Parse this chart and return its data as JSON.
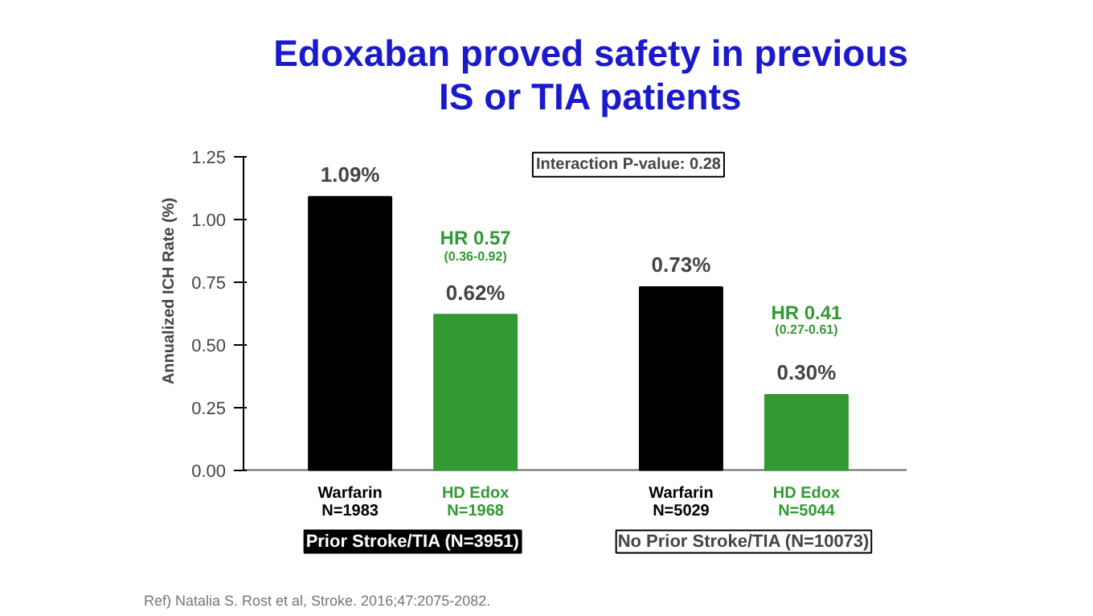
{
  "chart_data": {
    "type": "bar",
    "title": "Edoxaban proved safety in previous\nIS or TIA patients",
    "ylabel": "Annualized ICH Rate (%)",
    "categories": [
      "Warfarin\nN=1983",
      "HD Edox\nN=1968",
      "Warfarin\nN=5029",
      "HD Edox\nN=5044"
    ],
    "values": [
      1.09,
      0.62,
      0.73,
      0.3
    ],
    "colors": [
      "#000000",
      "#339933",
      "#000000",
      "#339933"
    ],
    "value_labels": [
      "1.09%",
      "0.62%",
      "0.73%",
      "0.30%"
    ],
    "ylim": [
      0,
      1.25
    ],
    "yticks": [
      {
        "value": 0,
        "label": "0.00"
      },
      {
        "value": 0.25,
        "label": "0.25"
      },
      {
        "value": 0.5,
        "label": "0.50"
      },
      {
        "value": 0.75,
        "label": "0.75"
      },
      {
        "value": 1,
        "label": "1.00"
      },
      {
        "value": 1.25,
        "label": "1.25"
      }
    ],
    "grid": false,
    "annotations": [
      "Interaction P-value: 0.28",
      "Prior Stroke/TIA (N=3951)",
      "No Prior Stroke/TIA (N=10073)",
      "Ref) Natalia S. Rost et al, Stroke. 2016;47:2075-2082.",
      "HR 0.57",
      "(0.36-0.92)",
      "HR 0.41",
      "(0.27-0.61)"
    ]
  }
}
